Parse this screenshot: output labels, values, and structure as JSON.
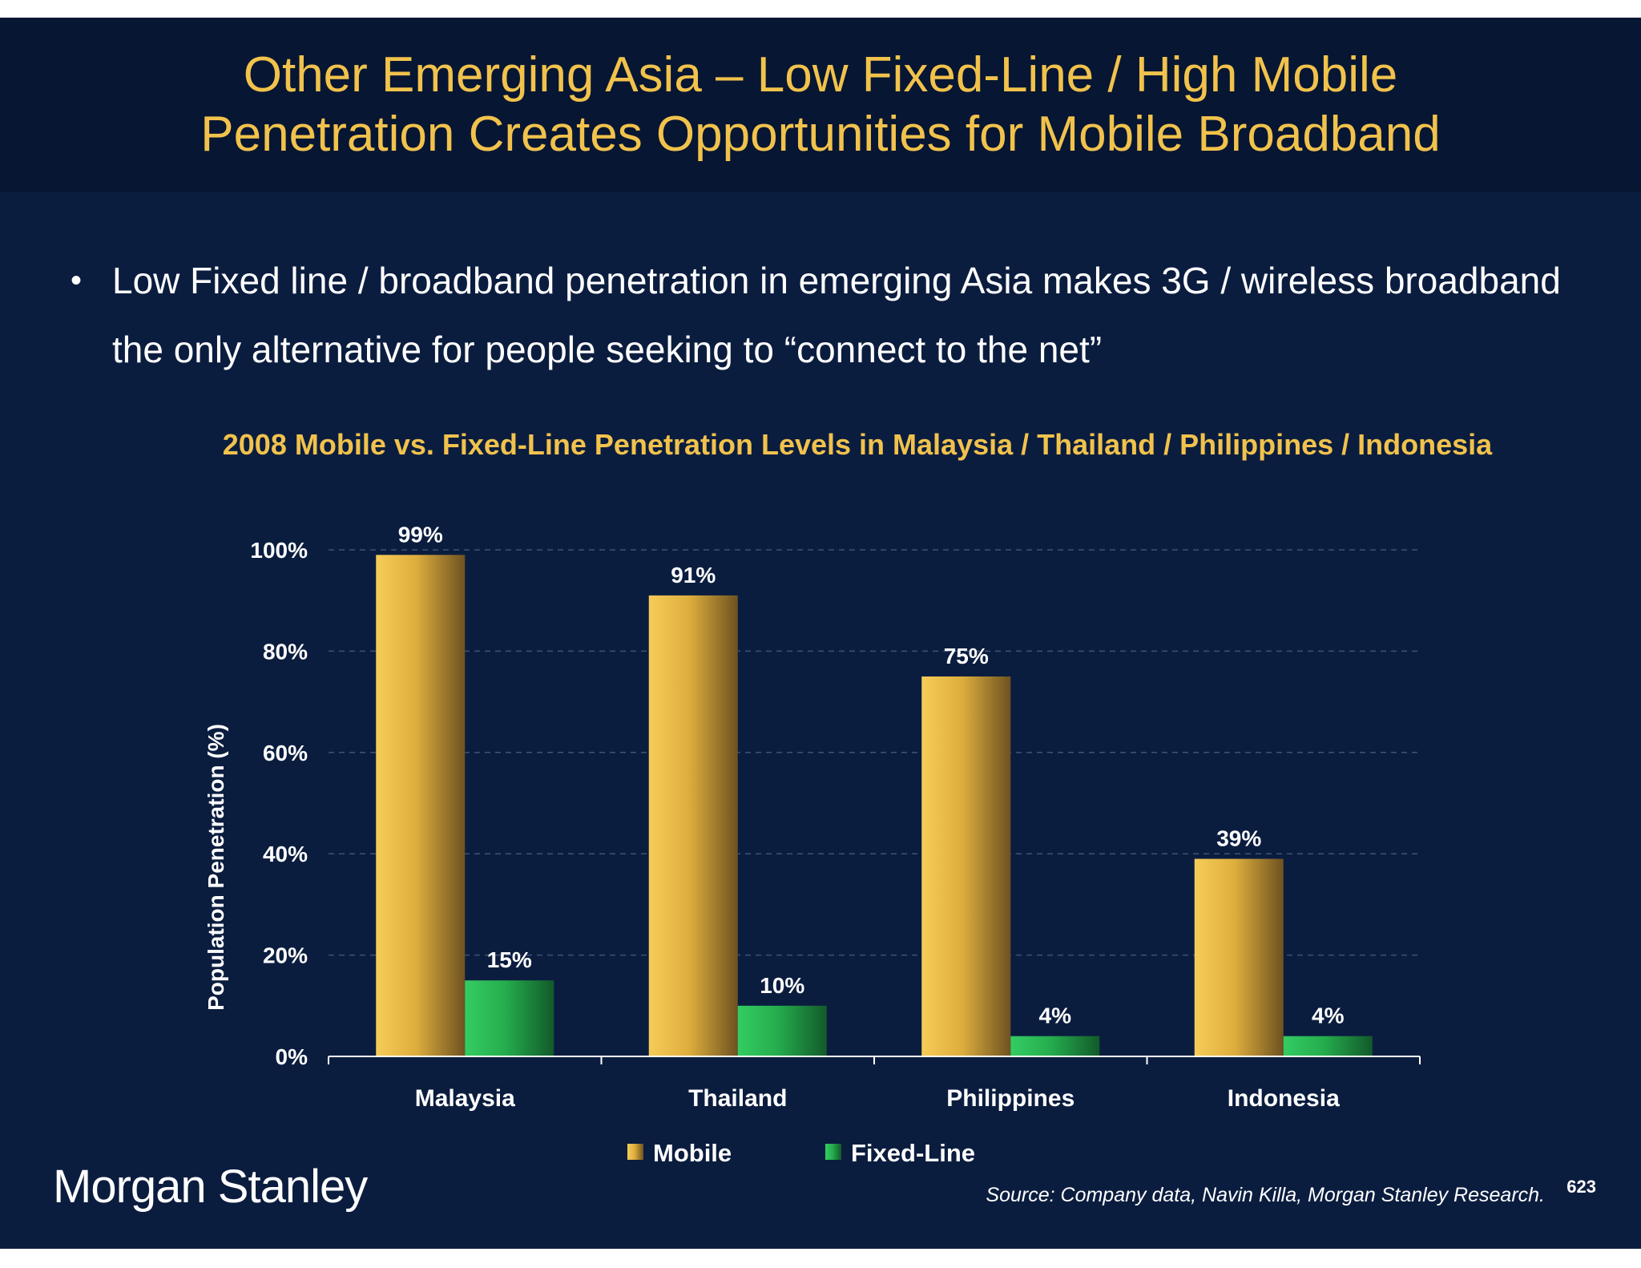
{
  "slide": {
    "title_line1": "Other Emerging Asia – Low Fixed-Line / High Mobile",
    "title_line2": "Penetration Creates Opportunities for Mobile Broadband",
    "bullet": "Low Fixed line / broadband penetration in emerging Asia makes 3G / wireless broadband the only alternative for people seeking to “connect to the net”",
    "bullet_symbol": "•",
    "brand": "Morgan Stanley",
    "source": "Source: Company data, Navin Killa, Morgan Stanley Research.",
    "page_number": "623"
  },
  "colors": {
    "background": "#0b1d3f",
    "header": "#071632",
    "title": "#f1c24c",
    "mobile": "#e9b83f",
    "fixed_line": "#25b04f",
    "text": "#ffffff"
  },
  "chart_data": {
    "type": "bar",
    "title": "2008 Mobile vs. Fixed-Line Penetration Levels in Malaysia / Thailand / Philippines / Indonesia",
    "ylabel": "Population Penetration (%)",
    "xlabel": "",
    "categories": [
      "Malaysia",
      "Thailand",
      "Philippines",
      "Indonesia"
    ],
    "series": [
      {
        "name": "Mobile",
        "values": [
          99,
          91,
          75,
          39
        ],
        "labels": [
          "99%",
          "91%",
          "75%",
          "39%"
        ]
      },
      {
        "name": "Fixed-Line",
        "values": [
          15,
          10,
          4,
          4
        ],
        "labels": [
          "15%",
          "10%",
          "4%",
          "4%"
        ]
      }
    ],
    "ylim": [
      0,
      100
    ],
    "yticks": [
      0,
      20,
      40,
      60,
      80,
      100
    ],
    "ytick_labels": [
      "0%",
      "20%",
      "40%",
      "60%",
      "80%",
      "100%"
    ],
    "grid": true,
    "legend": "bottom"
  }
}
